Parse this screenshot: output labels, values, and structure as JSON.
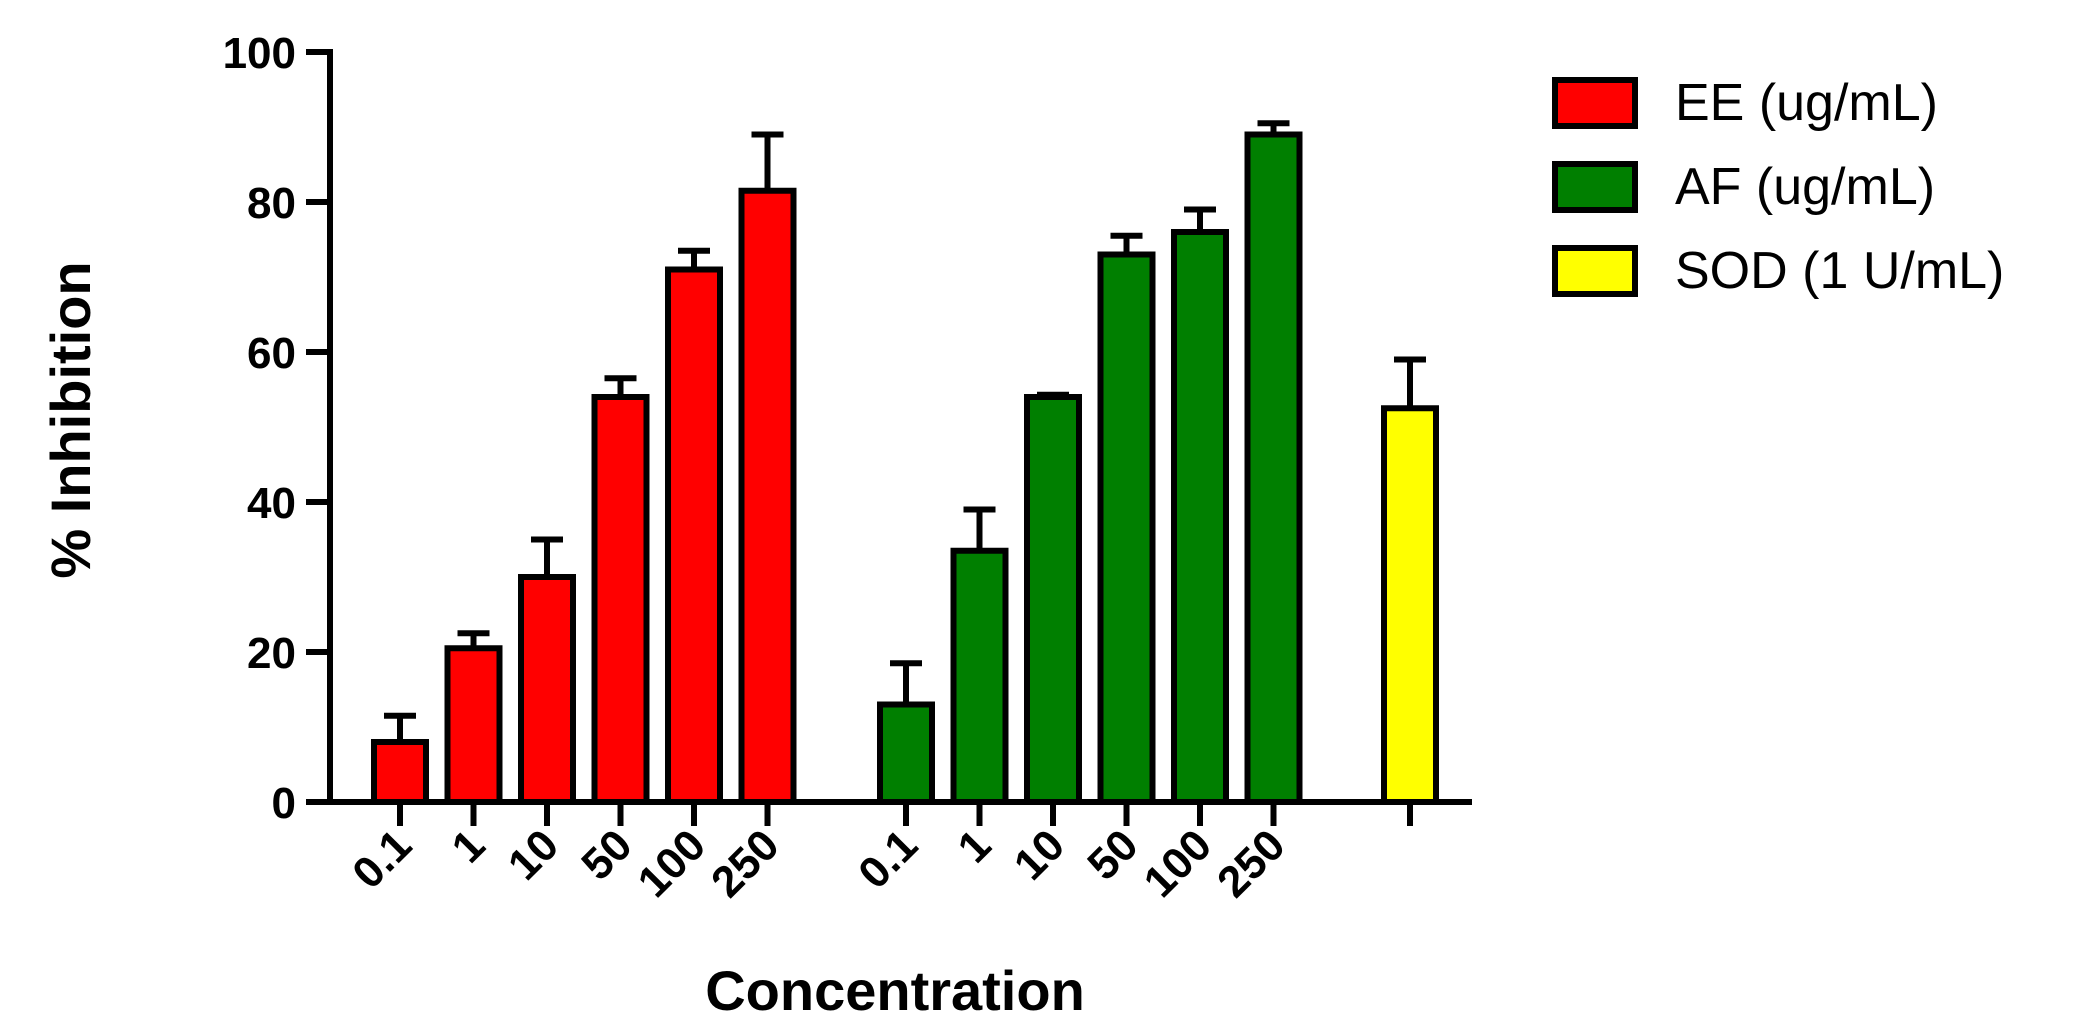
{
  "chart_data": {
    "type": "bar",
    "xlabel": "Concentration",
    "ylabel": "% Inhibition",
    "ylim": [
      0,
      100
    ],
    "yticks": [
      0,
      20,
      40,
      60,
      80,
      100
    ],
    "grid": false,
    "legend_position": "top-right",
    "error_bars": "one-sided up",
    "series": [
      {
        "name": "EE  (ug/mL)",
        "color": "#ff0000",
        "categories": [
          "0.1",
          "1",
          "10",
          "50",
          "100",
          "250"
        ],
        "values": [
          8,
          20.5,
          30,
          54,
          71,
          81.5
        ],
        "errors": [
          3.5,
          2,
          5,
          2.5,
          2.5,
          7.5
        ]
      },
      {
        "name": "AF (ug/mL)",
        "color": "#007f00",
        "categories": [
          "0.1",
          "1",
          "10",
          "50",
          "100",
          "250"
        ],
        "values": [
          13,
          33.5,
          54,
          73,
          76,
          89
        ],
        "errors": [
          5.5,
          5.5,
          0.3,
          2.5,
          3,
          1.5
        ]
      },
      {
        "name": "SOD (1 U/mL)",
        "color": "#ffff00",
        "categories": [
          ""
        ],
        "values": [
          52.5
        ],
        "errors": [
          6.5
        ]
      }
    ]
  }
}
